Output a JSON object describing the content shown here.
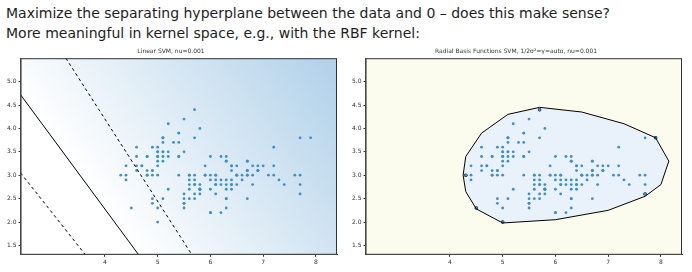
{
  "header": {
    "lines": [
      "Maximize the separating hyperplane between the data and 0 – does this make sense?",
      "More meaningful in kernel space, e.g., with the RBF kernel:"
    ]
  },
  "chart_data": [
    {
      "type": "scatter",
      "title": "Linear SVM, nu=0.001",
      "grid": false,
      "tick_labels": true,
      "xlim": [
        2.4,
        8.4
      ],
      "xticks": [
        4,
        5,
        6,
        7,
        8
      ],
      "ylim": [
        1.3,
        5.5
      ],
      "yticks": [
        1.5,
        {
          "value": 2,
          "label": "2.0"
        },
        2.5,
        {
          "value": 3,
          "label": "3.0"
        },
        3.5,
        {
          "value": 4,
          "label": "4.0"
        },
        4.5,
        {
          "value": 5,
          "label": "5.0"
        }
      ],
      "series": [
        {
          "type": "scatter",
          "color": "#3b8fd0",
          "marker": "circle",
          "x": [
            5.1,
            4.9,
            4.7,
            4.6,
            5.0,
            5.4,
            4.6,
            5.0,
            4.4,
            4.9,
            5.4,
            4.8,
            4.8,
            4.3,
            5.8,
            5.7,
            5.4,
            5.1,
            5.7,
            5.1,
            5.4,
            5.1,
            4.6,
            5.1,
            4.8,
            5.0,
            5.0,
            5.2,
            5.2,
            4.7,
            4.8,
            5.4,
            5.2,
            5.5,
            4.9,
            5.0,
            5.5,
            4.9,
            4.4,
            5.1,
            5.0,
            4.5,
            4.4,
            5.0,
            5.1,
            4.8,
            5.1,
            4.6,
            5.3,
            5.0,
            7.0,
            6.4,
            6.9,
            5.5,
            6.5,
            5.7,
            6.3,
            4.9,
            6.6,
            5.2,
            5.0,
            5.9,
            6.0,
            6.1,
            5.6,
            6.7,
            5.6,
            5.8,
            6.2,
            5.6,
            5.9,
            6.1,
            6.3,
            6.1,
            6.4,
            6.6,
            6.8,
            6.7,
            6.0,
            5.7,
            5.5,
            5.5,
            5.8,
            6.0,
            5.4,
            6.0,
            6.7,
            6.3,
            5.6,
            5.5,
            5.5,
            6.1,
            5.8,
            5.0,
            5.6,
            5.7,
            5.7,
            6.2,
            5.1,
            5.7,
            6.3,
            5.8,
            7.1,
            6.3,
            6.5,
            7.6,
            4.9,
            7.3,
            6.7,
            7.2,
            6.5,
            6.4,
            6.8,
            5.7,
            5.8,
            6.4,
            6.5,
            7.7,
            7.7,
            6.0,
            6.9,
            5.6,
            7.7,
            6.3,
            6.7,
            7.2,
            6.2,
            6.1,
            6.4,
            7.2,
            7.4,
            7.9,
            6.4,
            6.3,
            6.1,
            7.7,
            6.3,
            6.4,
            6.0,
            6.9,
            6.7,
            6.9,
            5.8,
            6.8,
            6.7,
            6.7,
            6.3,
            6.5,
            6.2,
            5.9
          ],
          "y": [
            3.5,
            3.0,
            3.2,
            3.1,
            3.6,
            3.9,
            3.4,
            3.4,
            2.9,
            3.1,
            3.7,
            3.4,
            3.0,
            3.0,
            4.0,
            4.4,
            3.9,
            3.5,
            3.8,
            3.8,
            3.4,
            3.7,
            3.6,
            3.3,
            3.4,
            3.0,
            3.4,
            3.5,
            3.4,
            3.2,
            3.1,
            3.4,
            4.1,
            4.2,
            3.1,
            3.2,
            3.5,
            3.6,
            3.0,
            3.4,
            3.5,
            2.3,
            3.2,
            3.5,
            3.8,
            3.0,
            3.8,
            3.2,
            3.7,
            3.3,
            3.2,
            3.2,
            3.1,
            2.3,
            2.8,
            2.8,
            3.3,
            2.4,
            2.9,
            2.7,
            2.0,
            3.0,
            2.2,
            2.9,
            2.9,
            3.1,
            3.0,
            2.7,
            2.2,
            2.5,
            3.2,
            2.8,
            2.5,
            2.8,
            2.9,
            3.0,
            2.8,
            3.0,
            2.9,
            2.6,
            2.4,
            2.4,
            2.7,
            2.7,
            3.0,
            3.4,
            3.1,
            2.3,
            3.0,
            2.5,
            2.6,
            3.0,
            2.6,
            2.3,
            2.7,
            3.0,
            2.9,
            2.9,
            2.5,
            2.8,
            3.3,
            2.7,
            3.0,
            2.9,
            3.0,
            3.0,
            2.5,
            2.9,
            2.5,
            3.6,
            3.2,
            2.7,
            3.0,
            2.5,
            2.8,
            3.2,
            3.0,
            3.8,
            2.6,
            2.2,
            3.2,
            2.8,
            2.8,
            2.7,
            3.3,
            3.2,
            2.8,
            3.0,
            2.8,
            3.0,
            2.8,
            3.8,
            2.8,
            2.8,
            2.6,
            3.0,
            3.4,
            3.1,
            3.0,
            3.1,
            3.1,
            3.1,
            2.7,
            3.2,
            3.3,
            3.0,
            2.5,
            3.0,
            3.4,
            3.0
          ]
        },
        {
          "type": "line",
          "color": "#000000",
          "line_style": "solid",
          "x": [
            2.4,
            4.64
          ],
          "y": [
            4.72,
            1.3
          ]
        },
        {
          "type": "line",
          "color": "#000000",
          "line_style": "dashed",
          "x": [
            3.26,
            5.65
          ],
          "y": [
            5.5,
            1.3
          ]
        },
        {
          "type": "line",
          "color": "#000000",
          "line_style": "dashed",
          "x": [
            2.4,
            3.63
          ],
          "y": [
            3.05,
            1.3
          ]
        }
      ]
    },
    {
      "type": "scatter",
      "title": "Radial Basis Functions SVM, 1/2σ²=γ=auto, nu=0.001",
      "grid": false,
      "tick_labels": true,
      "xlim": [
        2.4,
        8.4
      ],
      "xticks": [
        4,
        5,
        6,
        7,
        8
      ],
      "ylim": [
        1.3,
        5.5
      ],
      "yticks": [
        1.5,
        {
          "value": 2,
          "label": "2.0"
        },
        2.5,
        {
          "value": 3,
          "label": "3.0"
        },
        3.5,
        {
          "value": 4,
          "label": "4.0"
        },
        4.5,
        {
          "value": 5,
          "label": "5.0"
        }
      ],
      "series": [
        {
          "type": "scatter",
          "color": "#3b8fd0",
          "marker": "circle",
          "x": [
            5.1,
            4.9,
            4.7,
            4.6,
            5.0,
            5.4,
            4.6,
            5.0,
            4.4,
            4.9,
            5.4,
            4.8,
            4.8,
            4.3,
            5.8,
            5.7,
            5.4,
            5.1,
            5.7,
            5.1,
            5.4,
            5.1,
            4.6,
            5.1,
            4.8,
            5.0,
            5.0,
            5.2,
            5.2,
            4.7,
            4.8,
            5.4,
            5.2,
            5.5,
            4.9,
            5.0,
            5.5,
            4.9,
            4.4,
            5.1,
            5.0,
            4.5,
            4.4,
            5.0,
            5.1,
            4.8,
            5.1,
            4.6,
            5.3,
            5.0,
            7.0,
            6.4,
            6.9,
            5.5,
            6.5,
            5.7,
            6.3,
            4.9,
            6.6,
            5.2,
            5.0,
            5.9,
            6.0,
            6.1,
            5.6,
            6.7,
            5.6,
            5.8,
            6.2,
            5.6,
            5.9,
            6.1,
            6.3,
            6.1,
            6.4,
            6.6,
            6.8,
            6.7,
            6.0,
            5.7,
            5.5,
            5.5,
            5.8,
            6.0,
            5.4,
            6.0,
            6.7,
            6.3,
            5.6,
            5.5,
            5.5,
            6.1,
            5.8,
            5.0,
            5.6,
            5.7,
            5.7,
            6.2,
            5.1,
            5.7,
            6.3,
            5.8,
            7.1,
            6.3,
            6.5,
            7.6,
            4.9,
            7.3,
            6.7,
            7.2,
            6.5,
            6.4,
            6.8,
            5.7,
            5.8,
            6.4,
            6.5,
            7.7,
            7.7,
            6.0,
            6.9,
            5.6,
            7.7,
            6.3,
            6.7,
            7.2,
            6.2,
            6.1,
            6.4,
            7.2,
            7.4,
            7.9,
            6.4,
            6.3,
            6.1,
            7.7,
            6.3,
            6.4,
            6.0,
            6.9,
            6.7,
            6.9,
            5.8,
            6.8,
            6.7,
            6.7,
            6.3,
            6.5,
            6.2,
            5.9
          ],
          "y": [
            3.5,
            3.0,
            3.2,
            3.1,
            3.6,
            3.9,
            3.4,
            3.4,
            2.9,
            3.1,
            3.7,
            3.4,
            3.0,
            3.0,
            4.0,
            4.4,
            3.9,
            3.5,
            3.8,
            3.8,
            3.4,
            3.7,
            3.6,
            3.3,
            3.4,
            3.0,
            3.4,
            3.5,
            3.4,
            3.2,
            3.1,
            3.4,
            4.1,
            4.2,
            3.1,
            3.2,
            3.5,
            3.6,
            3.0,
            3.4,
            3.5,
            2.3,
            3.2,
            3.5,
            3.8,
            3.0,
            3.8,
            3.2,
            3.7,
            3.3,
            3.2,
            3.2,
            3.1,
            2.3,
            2.8,
            2.8,
            3.3,
            2.4,
            2.9,
            2.7,
            2.0,
            3.0,
            2.2,
            2.9,
            2.9,
            3.1,
            3.0,
            2.7,
            2.2,
            2.5,
            3.2,
            2.8,
            2.5,
            2.8,
            2.9,
            3.0,
            2.8,
            3.0,
            2.9,
            2.6,
            2.4,
            2.4,
            2.7,
            2.7,
            3.0,
            3.4,
            3.1,
            2.3,
            3.0,
            2.5,
            2.6,
            3.0,
            2.6,
            2.3,
            2.7,
            3.0,
            2.9,
            2.9,
            2.5,
            2.8,
            3.3,
            2.7,
            3.0,
            2.9,
            3.0,
            3.0,
            2.5,
            2.9,
            2.5,
            3.6,
            3.2,
            2.7,
            3.0,
            2.5,
            2.8,
            3.2,
            3.0,
            3.8,
            2.6,
            2.2,
            3.2,
            2.8,
            2.8,
            2.7,
            3.3,
            3.2,
            2.8,
            3.0,
            2.8,
            3.0,
            2.8,
            3.8,
            2.8,
            2.8,
            2.6,
            3.0,
            3.4,
            3.1,
            3.0,
            3.1,
            3.1,
            3.1,
            2.7,
            3.2,
            3.3,
            3.0,
            2.5,
            3.0,
            3.4,
            3.0
          ]
        },
        {
          "type": "line",
          "color": "#000000",
          "line_style": "solid",
          "x": [
            4.25,
            4.3,
            4.6,
            5.1,
            5.7,
            6.5,
            7.3,
            7.9,
            8.15,
            8.0,
            7.7,
            7.0,
            6.0,
            5.0,
            4.5,
            4.3,
            4.25
          ],
          "y": [
            3.0,
            3.4,
            3.9,
            4.3,
            4.45,
            4.35,
            4.1,
            3.8,
            3.3,
            2.8,
            2.55,
            2.25,
            2.05,
            1.98,
            2.28,
            2.65,
            3.0
          ]
        },
        {
          "type": "scatter",
          "color": "#000000",
          "marker": "circle",
          "x": [
            5.7,
            7.9,
            7.7,
            5.0,
            4.5,
            4.3
          ],
          "y": [
            4.4,
            3.8,
            2.6,
            2.0,
            2.3,
            3.0
          ]
        }
      ]
    }
  ]
}
